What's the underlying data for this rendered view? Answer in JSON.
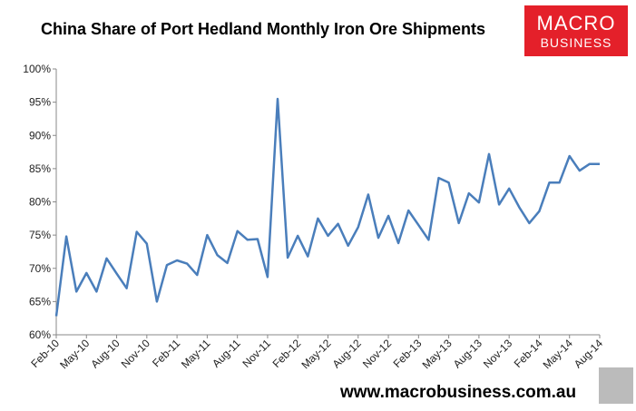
{
  "chart_data": {
    "type": "line",
    "title": "China Share of Port Hedland Monthly Iron Ore Shipments",
    "logo": [
      "MACRO",
      "BUSINESS"
    ],
    "footer": "www.macrobusiness.com.au",
    "categories": [
      "Feb-10",
      null,
      null,
      "May-10",
      null,
      null,
      "Aug-10",
      null,
      null,
      "Nov-10",
      null,
      null,
      "Feb-11",
      null,
      null,
      "May-11",
      null,
      null,
      "Aug-11",
      null,
      null,
      "Nov-11",
      null,
      null,
      "Feb-12",
      null,
      null,
      "May-12",
      null,
      null,
      "Aug-12",
      null,
      null,
      "Nov-12",
      null,
      null,
      "Feb-13",
      null,
      null,
      "May-13",
      null,
      null,
      "Aug-13",
      null,
      null,
      "Nov-13",
      null,
      null,
      "Feb-14",
      null,
      null,
      "May-14",
      null,
      null,
      "Aug-14"
    ],
    "series": [
      {
        "name": "China share",
        "color": "#4a7ebb",
        "values": [
          62.8,
          74.8,
          66.5,
          69.3,
          66.5,
          71.5,
          69.2,
          67,
          75.5,
          73.7,
          65,
          70.5,
          71.2,
          70.7,
          69,
          75,
          72,
          70.8,
          75.6,
          74.3,
          74.4,
          68.7,
          95.5,
          71.6,
          74.9,
          71.8,
          77.5,
          74.9,
          76.7,
          73.4,
          76.2,
          81.1,
          74.6,
          77.9,
          73.8,
          78.7,
          76.5,
          74.3,
          83.6,
          82.9,
          76.8,
          81.3,
          79.9,
          87.2,
          79.6,
          82,
          79.2,
          76.8,
          78.6,
          82.9,
          82.9,
          86.9,
          84.7,
          85.7,
          85.7
        ]
      }
    ],
    "ylim": [
      60,
      100
    ],
    "yticks": [
      {
        "value": 60,
        "label": "60%"
      },
      {
        "value": 65,
        "label": "65%"
      },
      {
        "value": 70,
        "label": "70%"
      },
      {
        "value": 75,
        "label": "75%"
      },
      {
        "value": 80,
        "label": "80%"
      },
      {
        "value": 85,
        "label": "85%"
      },
      {
        "value": 90,
        "label": "90%"
      },
      {
        "value": 95,
        "label": "95%"
      },
      {
        "value": 100,
        "label": "100%"
      }
    ],
    "grid": false
  }
}
